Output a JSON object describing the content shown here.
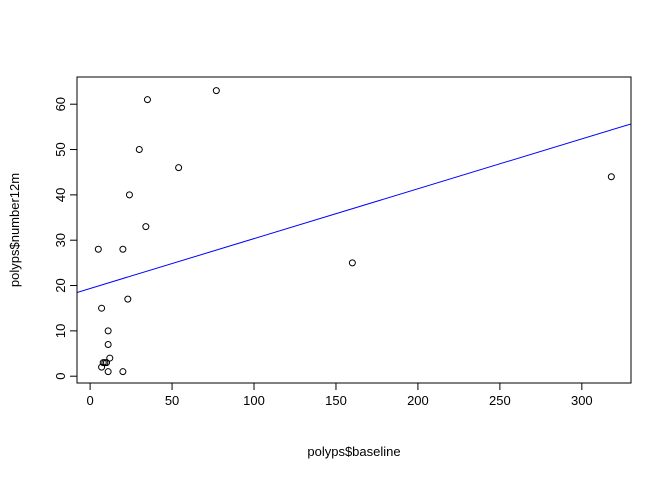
{
  "chart_data": {
    "type": "scatter",
    "title": "",
    "xlabel": "polyps$baseline",
    "ylabel": "polyps$number12m",
    "xlim": [
      -8,
      330
    ],
    "ylim": [
      -1.5,
      66
    ],
    "xticks": [
      0,
      50,
      100,
      150,
      200,
      250,
      300
    ],
    "yticks": [
      0,
      10,
      20,
      30,
      40,
      50,
      60
    ],
    "points": [
      {
        "x": 7,
        "y": 2
      },
      {
        "x": 8,
        "y": 3
      },
      {
        "x": 9,
        "y": 3
      },
      {
        "x": 10,
        "y": 3
      },
      {
        "x": 11,
        "y": 1
      },
      {
        "x": 12,
        "y": 4
      },
      {
        "x": 11,
        "y": 7
      },
      {
        "x": 11,
        "y": 10
      },
      {
        "x": 7,
        "y": 15
      },
      {
        "x": 5,
        "y": 28
      },
      {
        "x": 20,
        "y": 1
      },
      {
        "x": 20,
        "y": 28
      },
      {
        "x": 23,
        "y": 17
      },
      {
        "x": 24,
        "y": 40
      },
      {
        "x": 30,
        "y": 50
      },
      {
        "x": 34,
        "y": 33
      },
      {
        "x": 35,
        "y": 61
      },
      {
        "x": 54,
        "y": 46
      },
      {
        "x": 77,
        "y": 63
      },
      {
        "x": 160,
        "y": 25
      },
      {
        "x": 318,
        "y": 44
      }
    ],
    "fit_line": {
      "intercept": 19.35,
      "slope": 0.11,
      "color": "#0000ff"
    },
    "point_style": "open-circle",
    "grid": false,
    "legend": "none"
  }
}
